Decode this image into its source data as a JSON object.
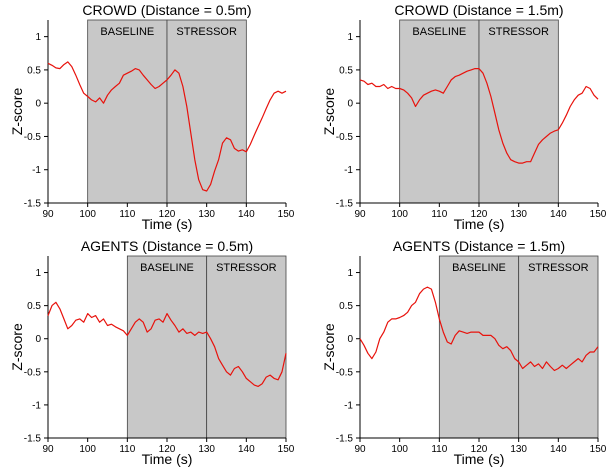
{
  "chart_data": [
    {
      "type": "line",
      "title": "CROWD (Distance = 0.5m)",
      "xlabel": "Time (s)",
      "ylabel": "Z-score",
      "xlim": [
        90,
        150
      ],
      "ylim": [
        -1.5,
        1.25
      ],
      "xticks": [
        90,
        100,
        110,
        120,
        130,
        140,
        150
      ],
      "yticks": [
        "-1.5",
        "-1",
        "-0.5",
        "0",
        "0.5",
        "1"
      ],
      "regions": [
        {
          "label": "BASELINE",
          "start": 100,
          "end": 120
        },
        {
          "label": "STRESSOR",
          "start": 120,
          "end": 140
        }
      ],
      "series": [
        {
          "color": "#e8120c",
          "x": [
            90,
            91,
            92,
            93,
            94,
            95,
            96,
            97,
            98,
            99,
            100,
            101,
            102,
            103,
            104,
            105,
            106,
            107,
            108,
            109,
            110,
            111,
            112,
            113,
            114,
            115,
            116,
            117,
            118,
            119,
            120,
            121,
            122,
            123,
            124,
            125,
            126,
            127,
            128,
            129,
            130,
            131,
            132,
            133,
            134,
            135,
            136,
            137,
            138,
            139,
            140,
            141,
            142,
            143,
            144,
            145,
            146,
            147,
            148,
            149,
            150
          ],
          "y": [
            0.6,
            0.57,
            0.53,
            0.52,
            0.58,
            0.62,
            0.55,
            0.42,
            0.28,
            0.15,
            0.1,
            0.05,
            0.02,
            0.08,
            0.0,
            0.12,
            0.2,
            0.25,
            0.3,
            0.42,
            0.45,
            0.48,
            0.52,
            0.5,
            0.42,
            0.35,
            0.28,
            0.22,
            0.25,
            0.3,
            0.35,
            0.42,
            0.5,
            0.45,
            0.25,
            -0.05,
            -0.45,
            -0.85,
            -1.15,
            -1.3,
            -1.32,
            -1.22,
            -1.02,
            -0.85,
            -0.6,
            -0.52,
            -0.55,
            -0.68,
            -0.72,
            -0.7,
            -0.73,
            -0.62,
            -0.48,
            -0.35,
            -0.22,
            -0.08,
            0.05,
            0.15,
            0.18,
            0.15,
            0.18
          ]
        }
      ]
    },
    {
      "type": "line",
      "title": "CROWD (Distance = 1.5m)",
      "xlabel": "Time (s)",
      "ylabel": "Z-score",
      "xlim": [
        90,
        150
      ],
      "ylim": [
        -1.5,
        1.25
      ],
      "xticks": [
        90,
        100,
        110,
        120,
        130,
        140,
        150
      ],
      "yticks": [
        "-1.5",
        "-1",
        "-0.5",
        "0",
        "0.5",
        "1"
      ],
      "regions": [
        {
          "label": "BASELINE",
          "start": 100,
          "end": 120
        },
        {
          "label": "STRESSOR",
          "start": 120,
          "end": 140
        }
      ],
      "series": [
        {
          "color": "#e8120c",
          "x": [
            90,
            91,
            92,
            93,
            94,
            95,
            96,
            97,
            98,
            99,
            100,
            101,
            102,
            103,
            104,
            105,
            106,
            107,
            108,
            109,
            110,
            111,
            112,
            113,
            114,
            115,
            116,
            117,
            118,
            119,
            120,
            121,
            122,
            123,
            124,
            125,
            126,
            127,
            128,
            129,
            130,
            131,
            132,
            133,
            134,
            135,
            136,
            137,
            138,
            139,
            140,
            141,
            142,
            143,
            144,
            145,
            146,
            147,
            148,
            149,
            150
          ],
          "y": [
            0.35,
            0.33,
            0.28,
            0.3,
            0.25,
            0.25,
            0.28,
            0.22,
            0.25,
            0.22,
            0.22,
            0.2,
            0.15,
            0.08,
            -0.05,
            0.05,
            0.12,
            0.15,
            0.18,
            0.2,
            0.18,
            0.15,
            0.25,
            0.35,
            0.4,
            0.42,
            0.45,
            0.48,
            0.5,
            0.52,
            0.52,
            0.45,
            0.3,
            0.1,
            -0.15,
            -0.4,
            -0.6,
            -0.75,
            -0.85,
            -0.88,
            -0.9,
            -0.9,
            -0.88,
            -0.88,
            -0.75,
            -0.62,
            -0.55,
            -0.5,
            -0.45,
            -0.42,
            -0.4,
            -0.3,
            -0.18,
            -0.05,
            0.05,
            0.12,
            0.15,
            0.25,
            0.22,
            0.12,
            0.06
          ]
        }
      ]
    },
    {
      "type": "line",
      "title": "AGENTS (Distance = 0.5m)",
      "xlabel": "Time (s)",
      "ylabel": "Z-score",
      "xlim": [
        90,
        150
      ],
      "ylim": [
        -1.5,
        1.25
      ],
      "xticks": [
        90,
        100,
        110,
        120,
        130,
        140,
        150
      ],
      "yticks": [
        "-1.5",
        "-1",
        "-0.5",
        "0",
        "0.5",
        "1"
      ],
      "regions": [
        {
          "label": "BASELINE",
          "start": 110,
          "end": 130
        },
        {
          "label": "STRESSOR",
          "start": 130,
          "end": 150
        }
      ],
      "series": [
        {
          "color": "#e8120c",
          "x": [
            90,
            91,
            92,
            93,
            94,
            95,
            96,
            97,
            98,
            99,
            100,
            101,
            102,
            103,
            104,
            105,
            106,
            107,
            108,
            109,
            110,
            111,
            112,
            113,
            114,
            115,
            116,
            117,
            118,
            119,
            120,
            121,
            122,
            123,
            124,
            125,
            126,
            127,
            128,
            129,
            130,
            131,
            132,
            133,
            134,
            135,
            136,
            137,
            138,
            139,
            140,
            141,
            142,
            143,
            144,
            145,
            146,
            147,
            148,
            149,
            150
          ],
          "y": [
            0.35,
            0.5,
            0.55,
            0.45,
            0.3,
            0.15,
            0.2,
            0.28,
            0.3,
            0.25,
            0.38,
            0.32,
            0.35,
            0.25,
            0.3,
            0.2,
            0.22,
            0.18,
            0.15,
            0.12,
            0.05,
            0.15,
            0.25,
            0.3,
            0.25,
            0.1,
            0.15,
            0.28,
            0.3,
            0.25,
            0.38,
            0.28,
            0.2,
            0.1,
            0.15,
            0.08,
            0.1,
            0.05,
            0.1,
            0.08,
            0.1,
            0.0,
            -0.12,
            -0.3,
            -0.4,
            -0.5,
            -0.55,
            -0.45,
            -0.42,
            -0.5,
            -0.6,
            -0.65,
            -0.7,
            -0.72,
            -0.68,
            -0.58,
            -0.55,
            -0.6,
            -0.62,
            -0.5,
            -0.22
          ]
        }
      ]
    },
    {
      "type": "line",
      "title": "AGENTS (Distance = 1.5m)",
      "xlabel": "Time (s)",
      "ylabel": "Z-score",
      "xlim": [
        90,
        150
      ],
      "ylim": [
        -1.5,
        1.25
      ],
      "xticks": [
        90,
        100,
        110,
        120,
        130,
        140,
        150
      ],
      "yticks": [
        "-1.5",
        "-1",
        "-0.5",
        "0",
        "0.5",
        "1"
      ],
      "regions": [
        {
          "label": "BASELINE",
          "start": 110,
          "end": 130
        },
        {
          "label": "STRESSOR",
          "start": 130,
          "end": 150
        }
      ],
      "series": [
        {
          "color": "#e8120c",
          "x": [
            90,
            91,
            92,
            93,
            94,
            95,
            96,
            97,
            98,
            99,
            100,
            101,
            102,
            103,
            104,
            105,
            106,
            107,
            108,
            109,
            110,
            111,
            112,
            113,
            114,
            115,
            116,
            117,
            118,
            119,
            120,
            121,
            122,
            123,
            124,
            125,
            126,
            127,
            128,
            129,
            130,
            131,
            132,
            133,
            134,
            135,
            136,
            137,
            138,
            139,
            140,
            141,
            142,
            143,
            144,
            145,
            146,
            147,
            148,
            149,
            150
          ],
          "y": [
            0.0,
            -0.1,
            -0.22,
            -0.3,
            -0.2,
            0.0,
            0.1,
            0.25,
            0.3,
            0.3,
            0.32,
            0.35,
            0.4,
            0.5,
            0.55,
            0.68,
            0.75,
            0.78,
            0.75,
            0.55,
            0.3,
            0.1,
            -0.05,
            -0.08,
            0.05,
            0.12,
            0.1,
            0.08,
            0.1,
            0.1,
            0.1,
            0.05,
            0.05,
            0.05,
            0.0,
            -0.1,
            -0.15,
            -0.12,
            -0.18,
            -0.3,
            -0.35,
            -0.45,
            -0.4,
            -0.35,
            -0.42,
            -0.38,
            -0.45,
            -0.35,
            -0.42,
            -0.48,
            -0.45,
            -0.4,
            -0.45,
            -0.4,
            -0.35,
            -0.3,
            -0.35,
            -0.25,
            -0.2,
            -0.2,
            -0.12
          ]
        }
      ]
    }
  ]
}
